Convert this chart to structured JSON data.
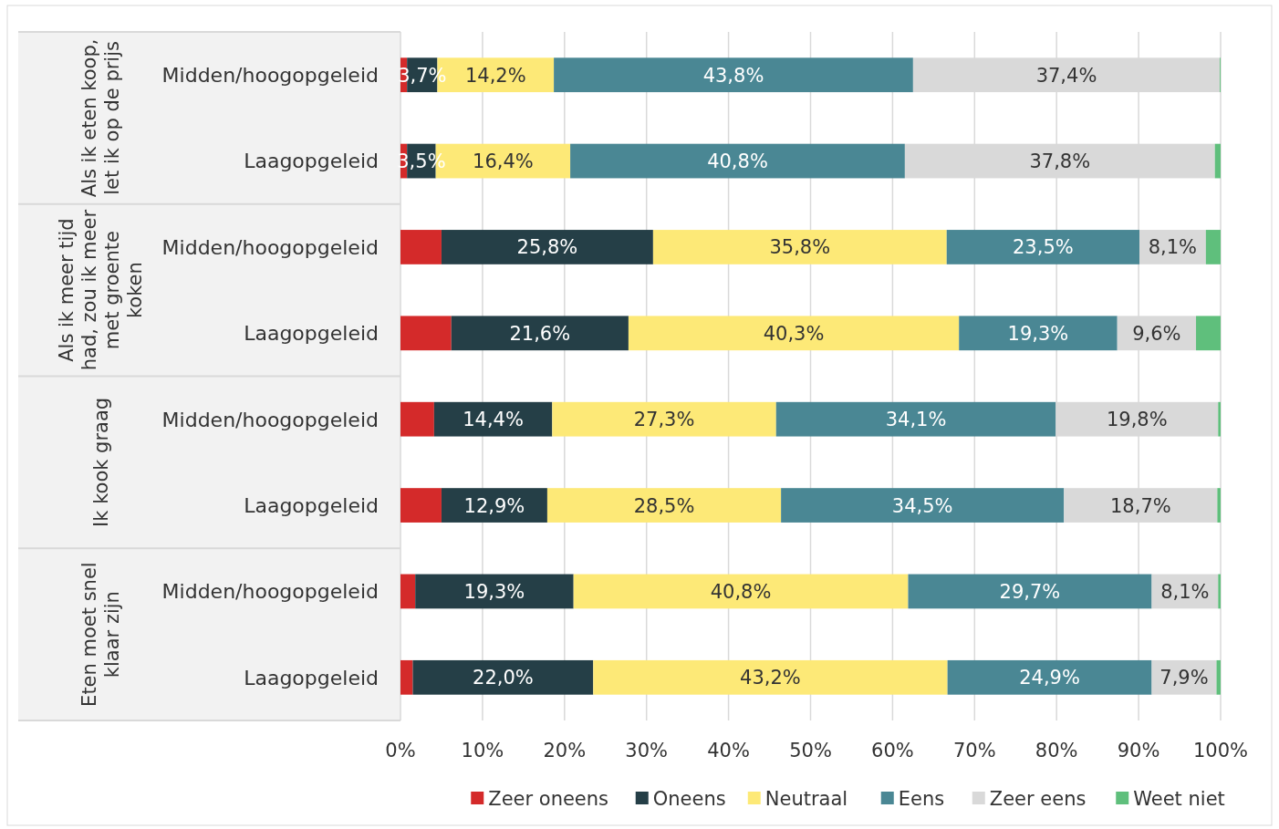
{
  "chart_data": {
    "type": "bar",
    "orientation": "horizontal",
    "stacked": true,
    "categories": [
      "Midden/hoogopgeleid",
      "Laagopgeleid",
      "Midden/hoogopgeleid",
      "Laagopgeleid",
      "Midden/hoogopgeleid",
      "Laagopgeleid",
      "Midden/hoogopgeleid",
      "Laagopgeleid"
    ],
    "annotations": [
      "Als ik eten koop,\nlet ik op de prijs",
      "Als ik meer tijd\nhad, zou ik meer\nmet groente\nkoken",
      "Ik kook graag",
      "Eten moet snel\nklaar zijn"
    ],
    "series": [
      {
        "name": "Zeer oneens",
        "color": "#d42a2a",
        "values": [
          0.8,
          0.8,
          5.0,
          6.2,
          4.1,
          5.0,
          1.8,
          1.5
        ],
        "value_labels": [
          null,
          null,
          null,
          null,
          null,
          null,
          null,
          null
        ]
      },
      {
        "name": "Oneens",
        "color": "#253f47",
        "values": [
          3.7,
          3.5,
          25.8,
          21.6,
          14.4,
          12.9,
          19.3,
          22.0
        ],
        "value_labels": [
          "3,7%",
          "3,5%",
          "25,8%",
          "21,6%",
          "14,4%",
          "12,9%",
          "19,3%",
          "22,0%"
        ]
      },
      {
        "name": "Neutraal",
        "color": "#fde977",
        "values": [
          14.2,
          16.4,
          35.8,
          40.3,
          27.3,
          28.5,
          40.8,
          43.2
        ],
        "value_labels": [
          "14,2%",
          "16,4%",
          "35,8%",
          "40,3%",
          "27,3%",
          "28,5%",
          "40,8%",
          "43,2%"
        ]
      },
      {
        "name": "Eens",
        "color": "#4a8794",
        "values": [
          43.8,
          40.8,
          23.5,
          19.3,
          34.1,
          34.5,
          29.7,
          24.9
        ],
        "value_labels": [
          "43,8%",
          "40,8%",
          "23,5%",
          "19,3%",
          "34,1%",
          "34,5%",
          "29,7%",
          "24,9%"
        ]
      },
      {
        "name": "Zeer eens",
        "color": "#d9d9d9",
        "values": [
          37.4,
          37.8,
          8.1,
          9.6,
          19.8,
          18.7,
          8.1,
          7.9
        ],
        "value_labels": [
          "37,4%",
          "37,8%",
          "8,1%",
          "9,6%",
          "19,8%",
          "18,7%",
          "8,1%",
          "7,9%"
        ]
      },
      {
        "name": "Weet niet",
        "color": "#5fbf7c",
        "values": [
          0.1,
          0.7,
          1.8,
          3.0,
          0.3,
          0.4,
          0.3,
          0.5
        ],
        "value_labels": [
          null,
          null,
          null,
          null,
          null,
          null,
          null,
          null
        ]
      }
    ],
    "xlim": [
      0,
      100
    ],
    "xticks": [
      {
        "value": 0,
        "label": "0%"
      },
      {
        "value": 10,
        "label": "10%"
      },
      {
        "value": 20,
        "label": "20%"
      },
      {
        "value": 30,
        "label": "30%"
      },
      {
        "value": 40,
        "label": "40%"
      },
      {
        "value": 50,
        "label": "50%"
      },
      {
        "value": 60,
        "label": "60%"
      },
      {
        "value": 70,
        "label": "70%"
      },
      {
        "value": 80,
        "label": "80%"
      },
      {
        "value": 90,
        "label": "90%"
      },
      {
        "value": 100,
        "label": "100%"
      }
    ],
    "grid": "x",
    "legend": "bottom"
  }
}
